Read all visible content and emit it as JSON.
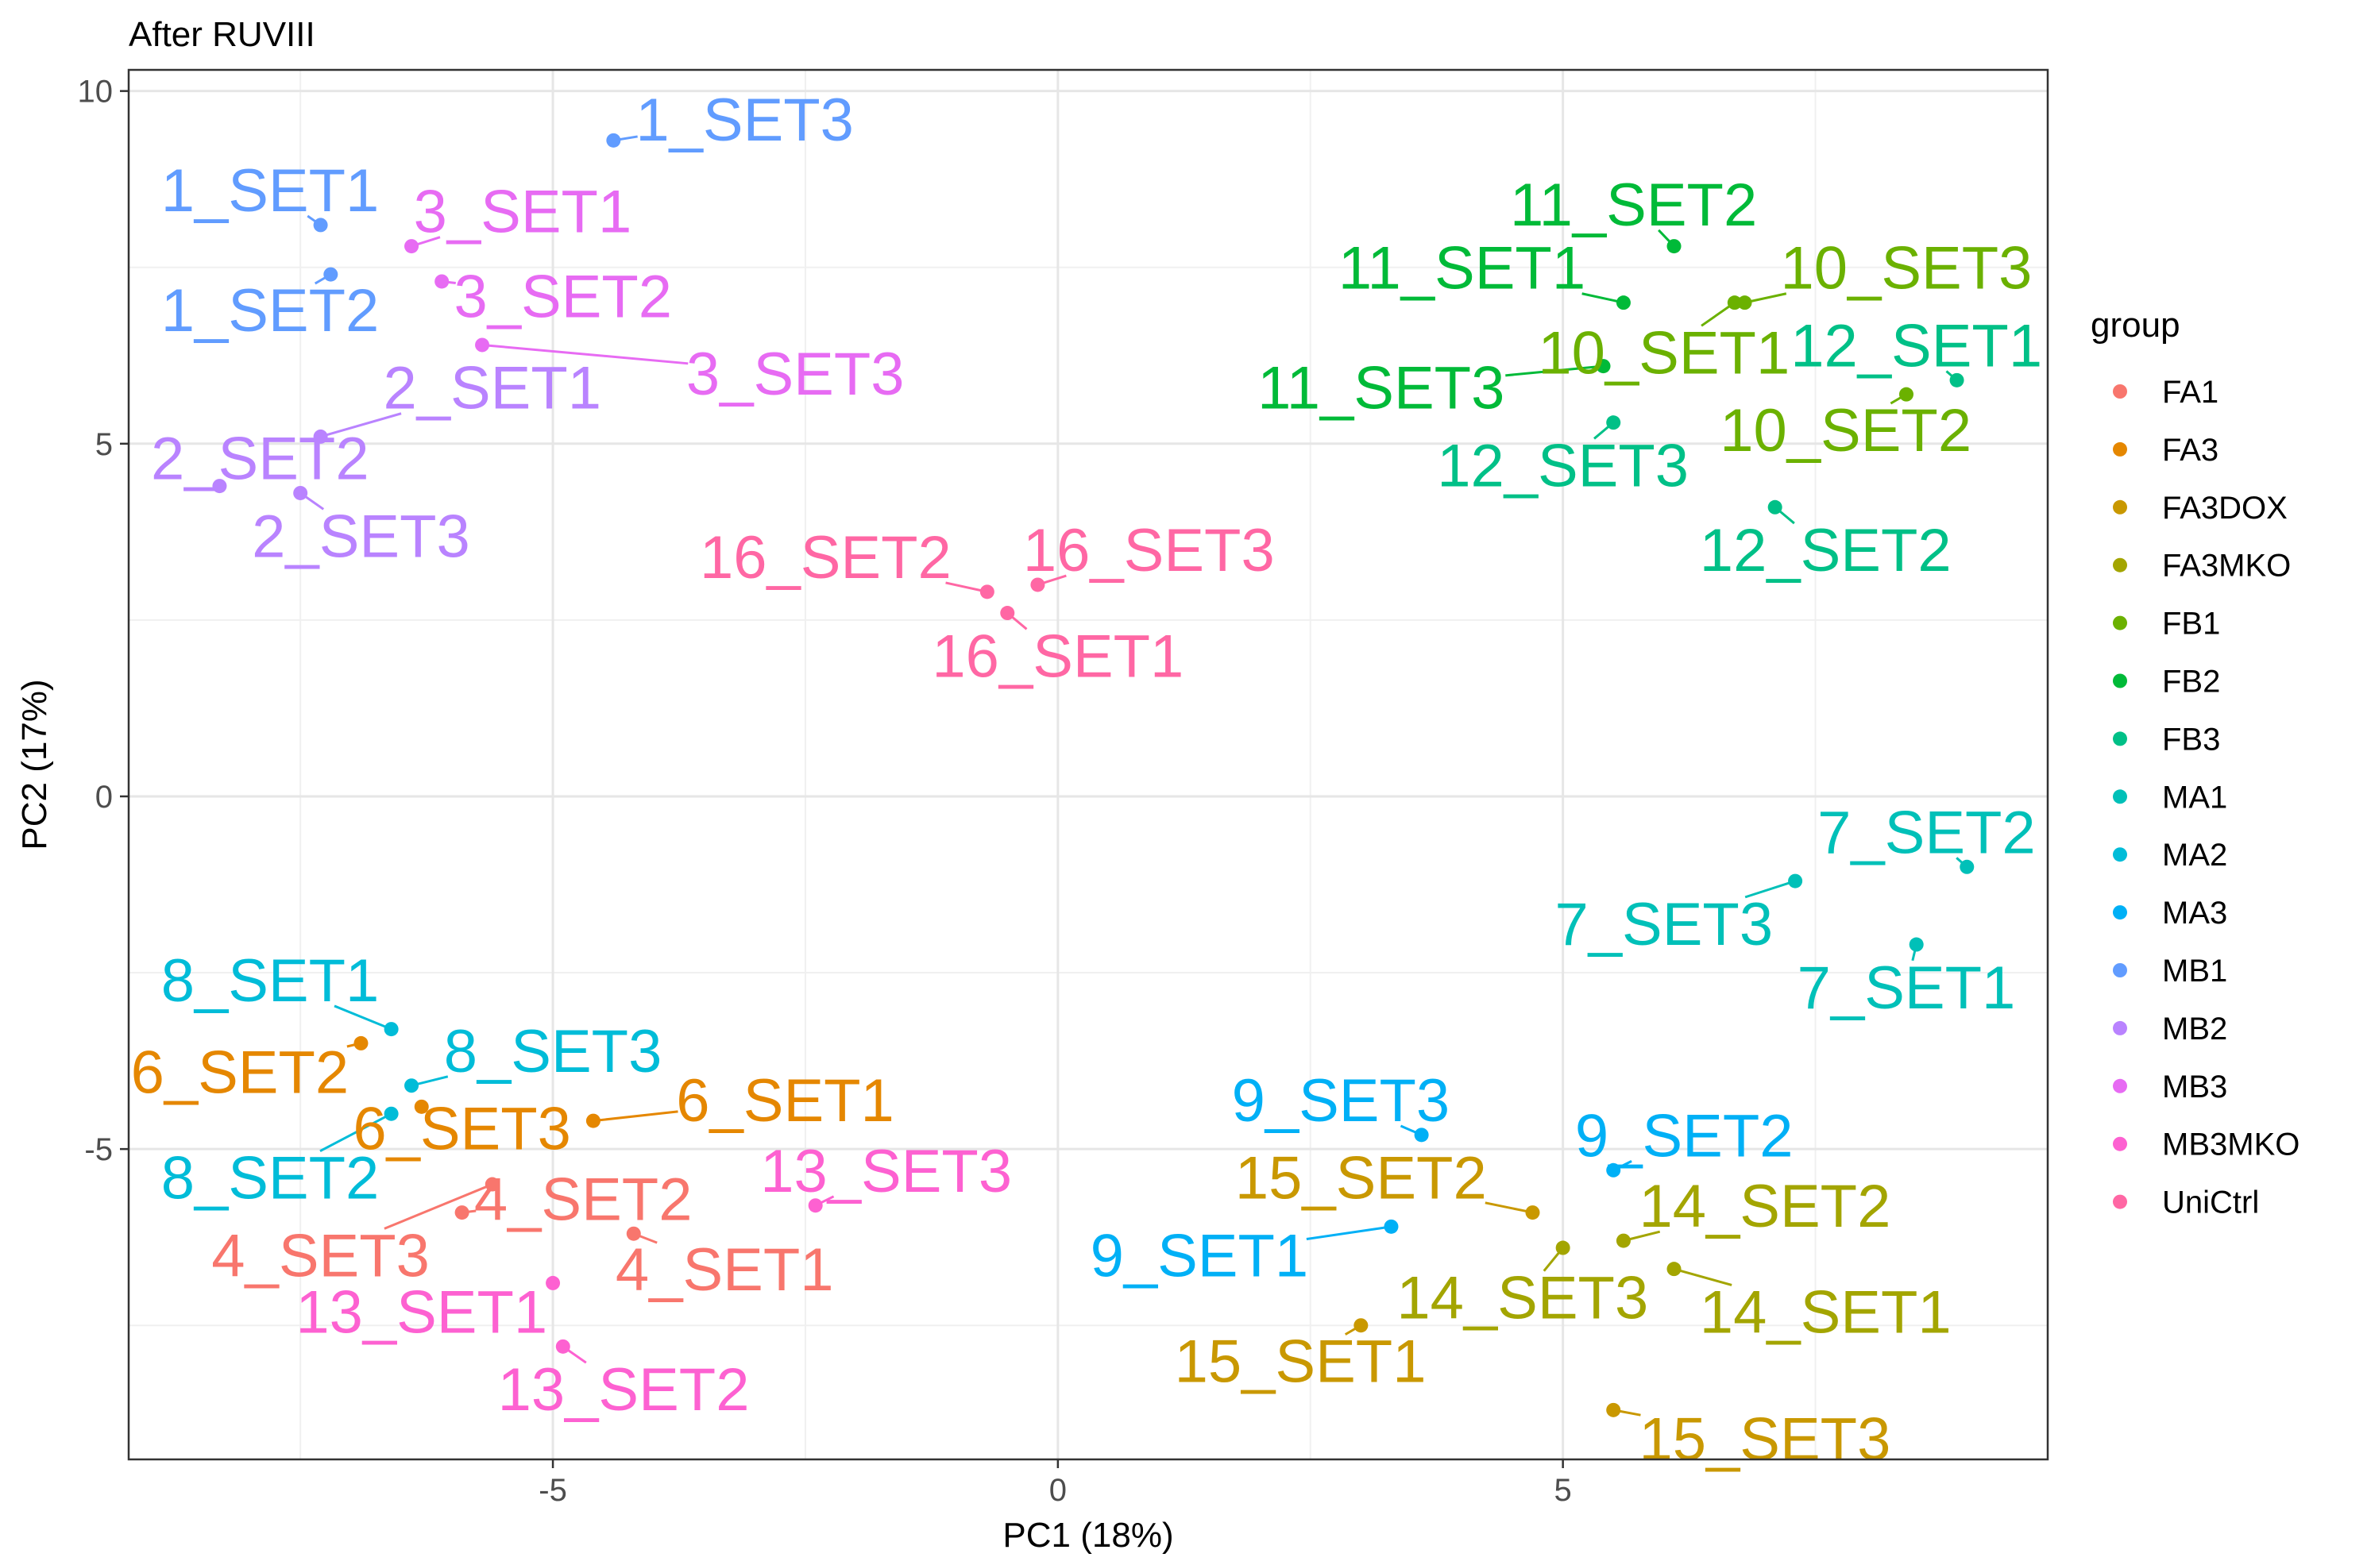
{
  "chart_data": {
    "type": "scatter",
    "title": "After RUVIII",
    "xlabel": "PC1 (18%)",
    "ylabel": "PC2 (17%)",
    "xlim": [
      -9.2,
      9.8
    ],
    "ylim": [
      -9.4,
      10.3
    ],
    "xticks": [
      -5,
      0,
      5
    ],
    "xtick_labels": [
      "-5",
      "0",
      "5"
    ],
    "yticks": [
      -5,
      0,
      5,
      10
    ],
    "ytick_labels": [
      "-5",
      "0",
      "5",
      "10"
    ],
    "grid": true,
    "legend": {
      "title": "group",
      "placement": "right",
      "entries": [
        {
          "label": "FA1",
          "color": "#F8766D"
        },
        {
          "label": "FA3",
          "color": "#E58700"
        },
        {
          "label": "FA3DOX",
          "color": "#C99800"
        },
        {
          "label": "FA3MKO",
          "color": "#A3A500"
        },
        {
          "label": "FB1",
          "color": "#6BB100"
        },
        {
          "label": "FB2",
          "color": "#00BA38"
        },
        {
          "label": "FB3",
          "color": "#00C087"
        },
        {
          "label": "MA1",
          "color": "#00C0B8"
        },
        {
          "label": "MA2",
          "color": "#00BCD8"
        },
        {
          "label": "MA3",
          "color": "#00B0F6"
        },
        {
          "label": "MB1",
          "color": "#619CFF"
        },
        {
          "label": "MB2",
          "color": "#B983FF"
        },
        {
          "label": "MB3",
          "color": "#E76BF3"
        },
        {
          "label": "MB3MKO",
          "color": "#FD61D1"
        },
        {
          "label": "UniCtrl",
          "color": "#FF67A4"
        }
      ]
    },
    "points": [
      {
        "label": "1_SET1",
        "group": "MB1",
        "x": -7.3,
        "y": 8.1,
        "lx": -7.8,
        "ly": 8.6
      },
      {
        "label": "1_SET2",
        "group": "MB1",
        "x": -7.2,
        "y": 7.4,
        "lx": -7.8,
        "ly": 6.9
      },
      {
        "label": "1_SET3",
        "group": "MB1",
        "x": -4.4,
        "y": 9.3,
        "lx": -3.1,
        "ly": 9.6
      },
      {
        "label": "2_SET1",
        "group": "MB2",
        "x": -7.3,
        "y": 5.1,
        "lx": -5.6,
        "ly": 5.8
      },
      {
        "label": "2_SET2",
        "group": "MB2",
        "x": -8.3,
        "y": 4.4,
        "lx": -7.9,
        "ly": 4.8
      },
      {
        "label": "2_SET3",
        "group": "MB2",
        "x": -7.5,
        "y": 4.3,
        "lx": -6.9,
        "ly": 3.7
      },
      {
        "label": "3_SET1",
        "group": "MB3",
        "x": -6.4,
        "y": 7.8,
        "lx": -5.3,
        "ly": 8.3
      },
      {
        "label": "3_SET2",
        "group": "MB3",
        "x": -6.1,
        "y": 7.3,
        "lx": -4.9,
        "ly": 7.1
      },
      {
        "label": "3_SET3",
        "group": "MB3",
        "x": -5.7,
        "y": 6.4,
        "lx": -2.6,
        "ly": 6.0
      },
      {
        "label": "4_SET1",
        "group": "FA1",
        "x": -4.2,
        "y": -6.2,
        "lx": -3.3,
        "ly": -6.7
      },
      {
        "label": "4_SET2",
        "group": "FA1",
        "x": -5.9,
        "y": -5.9,
        "lx": -4.7,
        "ly": -5.7
      },
      {
        "label": "4_SET3",
        "group": "FA1",
        "x": -5.6,
        "y": -5.5,
        "lx": -7.3,
        "ly": -6.5
      },
      {
        "label": "6_SET1",
        "group": "FA3",
        "x": -4.6,
        "y": -4.6,
        "lx": -2.7,
        "ly": -4.3
      },
      {
        "label": "6_SET2",
        "group": "FA3",
        "x": -6.9,
        "y": -3.5,
        "lx": -8.1,
        "ly": -3.9
      },
      {
        "label": "6_SET3",
        "group": "FA3",
        "x": -6.3,
        "y": -4.4,
        "lx": -5.9,
        "ly": -4.7
      },
      {
        "label": "7_SET1",
        "group": "MA1",
        "x": 8.5,
        "y": -2.1,
        "lx": 8.4,
        "ly": -2.7
      },
      {
        "label": "7_SET2",
        "group": "MA1",
        "x": 9.0,
        "y": -1.0,
        "lx": 8.6,
        "ly": -0.5
      },
      {
        "label": "7_SET3",
        "group": "MA1",
        "x": 7.3,
        "y": -1.2,
        "lx": 6.0,
        "ly": -1.8
      },
      {
        "label": "8_SET1",
        "group": "MA2",
        "x": -6.6,
        "y": -3.3,
        "lx": -7.8,
        "ly": -2.6
      },
      {
        "label": "8_SET2",
        "group": "MA2",
        "x": -6.6,
        "y": -4.5,
        "lx": -7.8,
        "ly": -5.4
      },
      {
        "label": "8_SET3",
        "group": "MA2",
        "x": -6.4,
        "y": -4.1,
        "lx": -5.0,
        "ly": -3.6
      },
      {
        "label": "9_SET1",
        "group": "MA3",
        "x": 3.3,
        "y": -6.1,
        "lx": 1.4,
        "ly": -6.5
      },
      {
        "label": "9_SET2",
        "group": "MA3",
        "x": 5.5,
        "y": -5.3,
        "lx": 6.2,
        "ly": -4.8
      },
      {
        "label": "9_SET3",
        "group": "MA3",
        "x": 3.6,
        "y": -4.8,
        "lx": 2.8,
        "ly": -4.3
      },
      {
        "label": "10_SET1",
        "group": "FB1",
        "x": 6.7,
        "y": 7.0,
        "lx": 6.0,
        "ly": 6.3
      },
      {
        "label": "10_SET2",
        "group": "FB1",
        "x": 8.4,
        "y": 5.7,
        "lx": 7.8,
        "ly": 5.2
      },
      {
        "label": "10_SET3",
        "group": "FB1",
        "x": 6.8,
        "y": 7.0,
        "lx": 8.4,
        "ly": 7.5
      },
      {
        "label": "11_SET1",
        "group": "FB2",
        "x": 5.6,
        "y": 7.0,
        "lx": 4.0,
        "ly": 7.5
      },
      {
        "label": "11_SET2",
        "group": "FB2",
        "x": 6.1,
        "y": 7.8,
        "lx": 5.7,
        "ly": 8.4
      },
      {
        "label": "11_SET3",
        "group": "FB2",
        "x": 5.4,
        "y": 6.1,
        "lx": 3.2,
        "ly": 5.8
      },
      {
        "label": "12_SET1",
        "group": "FB3",
        "x": 8.9,
        "y": 5.9,
        "lx": 8.5,
        "ly": 6.4
      },
      {
        "label": "12_SET2",
        "group": "FB3",
        "x": 7.1,
        "y": 4.1,
        "lx": 7.6,
        "ly": 3.5
      },
      {
        "label": "12_SET3",
        "group": "FB3",
        "x": 5.5,
        "y": 5.3,
        "lx": 5.0,
        "ly": 4.7
      },
      {
        "label": "13_SET1",
        "group": "MB3MKO",
        "x": -5.0,
        "y": -6.9,
        "lx": -6.3,
        "ly": -7.3
      },
      {
        "label": "13_SET2",
        "group": "MB3MKO",
        "x": -4.9,
        "y": -7.8,
        "lx": -4.3,
        "ly": -8.4
      },
      {
        "label": "13_SET3",
        "group": "MB3MKO",
        "x": -2.4,
        "y": -5.8,
        "lx": -1.7,
        "ly": -5.3
      },
      {
        "label": "14_SET1",
        "group": "FA3MKO",
        "x": 6.1,
        "y": -6.7,
        "lx": 7.6,
        "ly": -7.3
      },
      {
        "label": "14_SET2",
        "group": "FA3MKO",
        "x": 5.6,
        "y": -6.3,
        "lx": 7.0,
        "ly": -5.8
      },
      {
        "label": "14_SET3",
        "group": "FA3MKO",
        "x": 5.0,
        "y": -6.4,
        "lx": 4.6,
        "ly": -7.1
      },
      {
        "label": "15_SET1",
        "group": "FA3DOX",
        "x": 3.0,
        "y": -7.5,
        "lx": 2.4,
        "ly": -8.0
      },
      {
        "label": "15_SET2",
        "group": "FA3DOX",
        "x": 4.7,
        "y": -5.9,
        "lx": 3.0,
        "ly": -5.4
      },
      {
        "label": "15_SET3",
        "group": "FA3DOX",
        "x": 5.5,
        "y": -8.7,
        "lx": 7.0,
        "ly": -9.1
      },
      {
        "label": "16_SET1",
        "group": "UniCtrl",
        "x": -0.5,
        "y": 2.6,
        "lx": 0.0,
        "ly": 2.0
      },
      {
        "label": "16_SET2",
        "group": "UniCtrl",
        "x": -0.7,
        "y": 2.9,
        "lx": -2.3,
        "ly": 3.4
      },
      {
        "label": "16_SET3",
        "group": "UniCtrl",
        "x": -0.2,
        "y": 3.0,
        "lx": 0.9,
        "ly": 3.5
      }
    ]
  }
}
